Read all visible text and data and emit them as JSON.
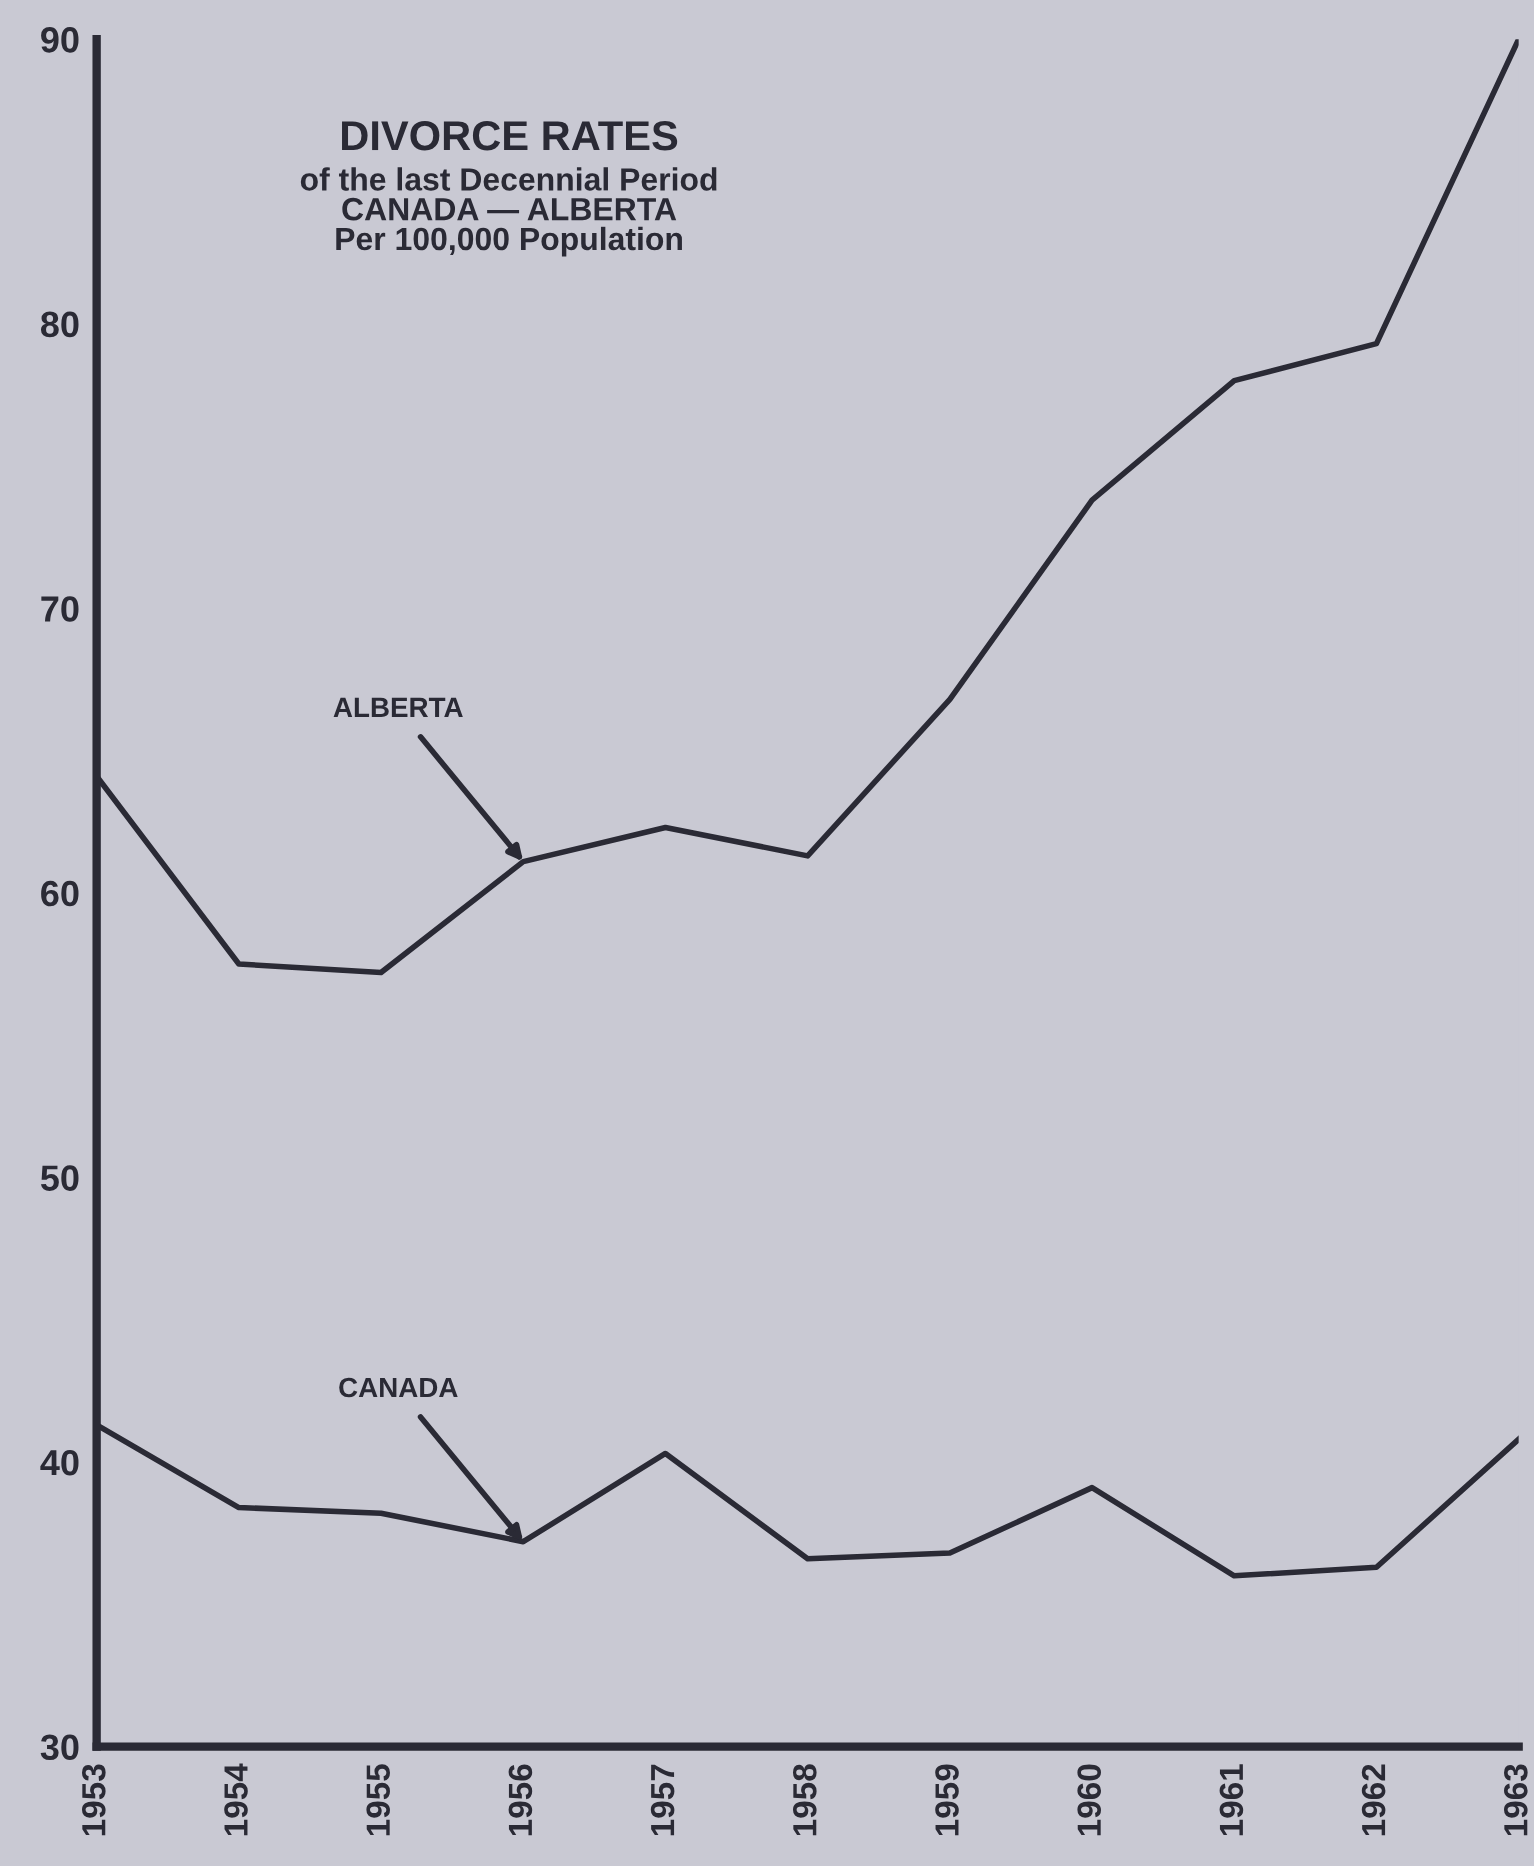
{
  "chart_data": {
    "type": "line",
    "title": "DIVORCE RATES",
    "subtitle": "of the last Decennial Period\nCANADA — ALBERTA\nPer 100,000 Population",
    "categories": [
      "1953",
      "1954",
      "1955",
      "1956",
      "1957",
      "1958",
      "1959",
      "1960",
      "1961",
      "1962",
      "1963"
    ],
    "series": [
      {
        "color": "#2a2a35",
        "values": [
          64.1,
          57.5,
          57.2,
          61.1,
          62.3,
          61.3,
          66.8,
          73.8,
          78.0,
          79.3,
          90.0
        ]
      },
      {
        "color": "#2a2a35",
        "values": [
          41.3,
          38.4,
          38.2,
          37.2,
          40.3,
          36.6,
          36.8,
          39.1,
          36.0,
          36.3,
          40.8
        ]
      }
    ],
    "annotations": [
      {
        "text": "ALBERTA",
        "x": "1956",
        "y": 61.1
      },
      {
        "text": "CANADA",
        "x": "1956",
        "y": 37.2
      }
    ],
    "ylim": [
      30,
      90
    ],
    "yticks": [
      30,
      40,
      50,
      60,
      70,
      80,
      90
    ],
    "grid": false,
    "legend": false,
    "marker": "none",
    "line_style": "solid"
  }
}
